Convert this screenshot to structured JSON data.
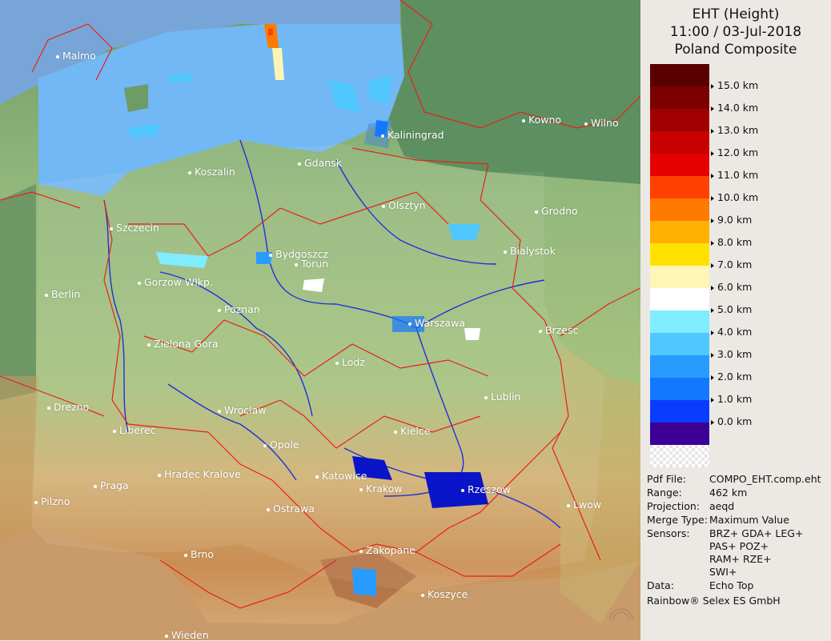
{
  "title": {
    "line1": "EHT (Height)",
    "line2": "11:00 / 03-Jul-2018",
    "line3": "Poland Composite"
  },
  "legend": {
    "colors": [
      "#5a0000",
      "#7d0000",
      "#a00000",
      "#c80000",
      "#e60000",
      "#ff4000",
      "#ff7a00",
      "#ffb000",
      "#ffe100",
      "#fff5b4",
      "#ffffff",
      "#80ecff",
      "#50c8ff",
      "#289bff",
      "#1478ff",
      "#0a3cff",
      "#0a14c8",
      "#3c0096"
    ],
    "labels": [
      "15.0 km",
      "14.0 km",
      "13.0 km",
      "12.0 km",
      "11.0 km",
      "10.0 km",
      "9.0 km",
      "8.0 km",
      "7.0 km",
      "6.0 km",
      "5.0 km",
      "4.0 km",
      "3.0 km",
      "2.0 km",
      "1.0 km",
      "0.0 km"
    ]
  },
  "info": {
    "pdf_file_key": "Pdf File:",
    "pdf_file_val": "COMPO_EHT.comp.eht",
    "range_key": "Range:",
    "range_val": "462 km",
    "projection_key": "Projection:",
    "projection_val": "aeqd",
    "merge_key": "Merge Type:",
    "merge_val": "Maximum Value",
    "sensors_key": "Sensors:",
    "sensors_line1": "BRZ+ GDA+ LEG+",
    "sensors_line2": "PAS+ POZ+",
    "sensors_line3": "RAM+ RZE+",
    "sensors_line4": "SWI+",
    "data_key": "Data:",
    "data_val": "Echo Top",
    "credit": "Rainbow® Selex ES GmbH"
  },
  "cities": [
    "Malmo",
    "Kaliningrad",
    "Kowno",
    "Wilno",
    "Gdansk",
    "Koszalin",
    "Olsztyn",
    "Grodno",
    "Szczecin",
    "Bydgoszcz",
    "Torun",
    "Bialystok",
    "Gorzow Wlkp.",
    "Berlin",
    "Poznan",
    "Warszawa",
    "Brzesc",
    "Zielona Gora",
    "Lodz",
    "Lublin",
    "Drezno",
    "Wroclaw",
    "Liberec",
    "Kielce",
    "Opole",
    "Hradec Kralove",
    "Katowice",
    "Praga",
    "Krakow",
    "Rzeszow",
    "Pilzno",
    "Lwow",
    "Ostrawa",
    "Zakopane",
    "Brno",
    "Koszyce",
    "Wieden"
  ]
}
